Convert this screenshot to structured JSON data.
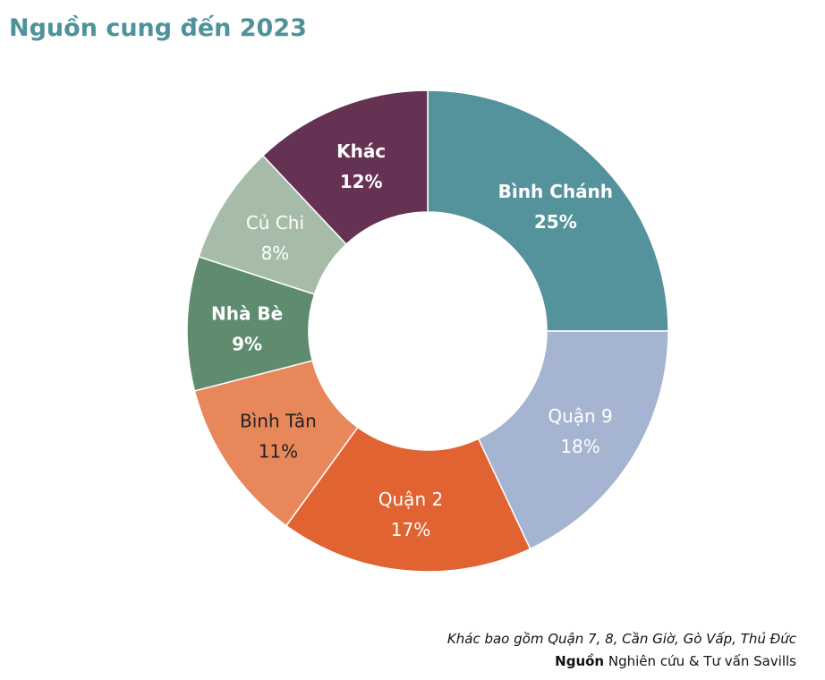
{
  "chart_data": {
    "type": "pie",
    "title": "Nguồn cung đến 2023",
    "donut": true,
    "slices": [
      {
        "label": "Bình Chánh",
        "value": 25,
        "value_label": "25%",
        "color": "#55939c",
        "text_color": "#ffffff",
        "bold": true
      },
      {
        "label": "Quận 9",
        "value": 18,
        "value_label": "18%",
        "color": "#a5b5d1",
        "text_color": "#ffffff",
        "bold": false
      },
      {
        "label": "Quận 2",
        "value": 17,
        "value_label": "17%",
        "color": "#e16332",
        "text_color": "#ffffff",
        "bold": false
      },
      {
        "label": "Bình Tân",
        "value": 11,
        "value_label": "11%",
        "color": "#e8875a",
        "text_color": "#222222",
        "bold": false
      },
      {
        "label": "Nhà Bè",
        "value": 9,
        "value_label": "9%",
        "color": "#5f8b6e",
        "text_color": "#ffffff",
        "bold": true
      },
      {
        "label": "Củ Chi",
        "value": 8,
        "value_label": "8%",
        "color": "#a6bca9",
        "text_color": "#ffffff",
        "bold": false
      },
      {
        "label": "Khác",
        "value": 12,
        "value_label": "12%",
        "color": "#663254",
        "text_color": "#ffffff",
        "bold": true
      }
    ],
    "legend": "none"
  },
  "footnote": {
    "line1_emph": "Khác",
    "line1_rest": " bao gồm Quận 7, 8, Cần Giờ, Gò Vấp, Thủ Đức",
    "line2_bold": "Nguồn",
    "line2_rest": " Nghiên cứu & Tư vấn Savills"
  }
}
